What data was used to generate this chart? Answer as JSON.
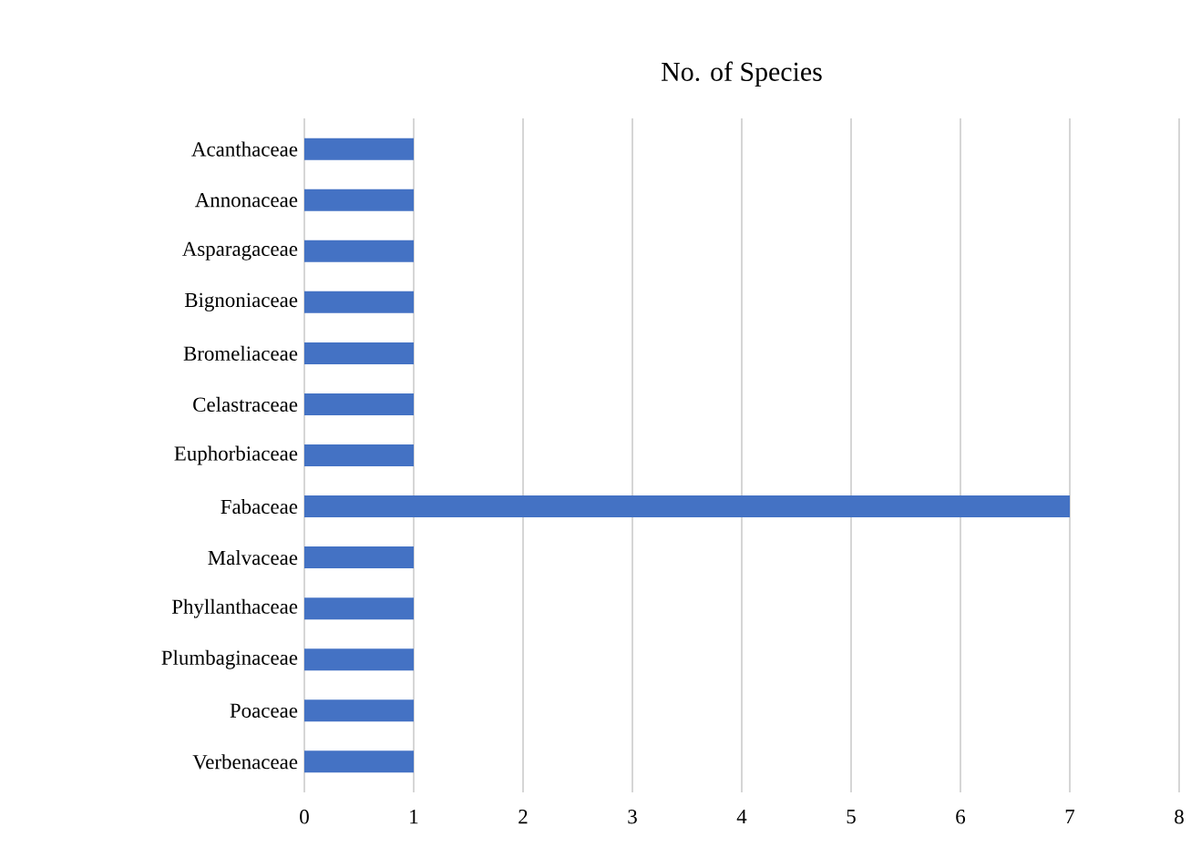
{
  "chart_data": {
    "type": "bar",
    "orientation": "horizontal",
    "title": "No. of Species",
    "categories": [
      "Acanthaceae",
      "Annonaceae",
      "Asparagaceae",
      "Bignoniaceae",
      "Bromeliaceae",
      "Celastraceae",
      "Euphorbiaceae",
      "Fabaceae",
      "Malvaceae",
      "Phyllanthaceae",
      "Plumbaginaceae",
      "Poaceae",
      "Verbenaceae"
    ],
    "values": [
      1,
      1,
      1,
      1,
      1,
      1,
      1,
      7,
      1,
      1,
      1,
      1,
      1
    ],
    "color": "#4472c4",
    "xlim": [
      0,
      8
    ],
    "xticks": [
      0,
      1,
      2,
      3,
      4,
      5,
      6,
      7,
      8
    ],
    "grid": "x"
  }
}
